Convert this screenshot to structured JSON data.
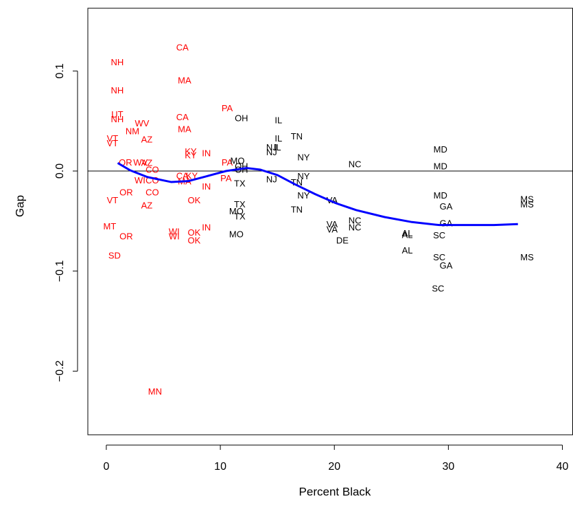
{
  "chart_data": {
    "type": "scatter",
    "x_label": "Percent Black",
    "y_label": "Gap",
    "xlim": [
      -1.62,
      40.9
    ],
    "ylim": [
      -0.2636,
      0.1627
    ],
    "xticks": [
      0,
      10,
      20,
      30,
      40
    ],
    "yticks": [
      {
        "value": -0.2,
        "label": "−0.2"
      },
      {
        "value": -0.1,
        "label": "−0.1"
      },
      {
        "value": 0,
        "label": "0.0"
      },
      0.1
    ],
    "reference_line": 0,
    "series": [
      {
        "color": "#ff0000",
        "labels": [
          "CA",
          "NH",
          "MA",
          "NH",
          "UT",
          "NH",
          "CA",
          "PA",
          "WV",
          "NM",
          "MA",
          "VT",
          "AZ",
          "VT",
          "KY",
          "IN",
          "KY",
          "OR",
          "WV",
          "AZ",
          "PA",
          "CO",
          "CA",
          "KY",
          "WI",
          "CO",
          "MA",
          "PA",
          "IN",
          "CO",
          "OR",
          "VT",
          "OK",
          "AZ",
          "IN",
          "MT",
          "OK",
          "WI",
          "WI",
          "OR",
          "OK",
          "SD",
          "MN"
        ],
        "x": [
          6.67,
          0.96,
          6.86,
          0.96,
          0.96,
          0.96,
          6.67,
          10.6,
          3.13,
          2.29,
          6.86,
          0.54,
          3.55,
          0.54,
          7.4,
          8.78,
          7.4,
          1.68,
          3.0,
          3.55,
          10.6,
          4.03,
          6.67,
          7.5,
          2.95,
          4.03,
          6.86,
          10.5,
          8.78,
          4.03,
          1.74,
          0.54,
          7.7,
          3.55,
          8.78,
          0.3,
          7.7,
          5.95,
          5.95,
          1.74,
          7.7,
          0.72,
          4.27
        ],
        "y": [
          0.123,
          0.108,
          0.09,
          0.08,
          0.056,
          0.051,
          0.053,
          0.062,
          0.047,
          0.039,
          0.041,
          0.032,
          0.031,
          0.027,
          0.019,
          0.017,
          0.015,
          0.008,
          0.008,
          0.0075,
          0.008,
          0.0007,
          -0.0055,
          -0.0055,
          -0.01,
          -0.01,
          -0.011,
          -0.008,
          -0.016,
          -0.022,
          -0.022,
          -0.03,
          -0.03,
          -0.035,
          -0.057,
          -0.056,
          -0.062,
          -0.061,
          -0.066,
          -0.066,
          -0.07,
          -0.085,
          -0.221
        ]
      },
      {
        "color": "#000000",
        "labels": [
          "OH",
          "IL",
          "TN",
          "IL",
          "NJ",
          "IL",
          "NJ",
          "NY",
          "MD",
          "MO",
          "NC",
          "MD",
          "OH",
          "OH",
          "NY",
          "NJ",
          "TX",
          "TN",
          "NY",
          "MD",
          "VA",
          "MS",
          "MS",
          "GA",
          "TX",
          "TN",
          "MO",
          "TX",
          "NC",
          "GA",
          "VA",
          "NC",
          "VA",
          "MO",
          "AL",
          "AL",
          "SC",
          "DE",
          "AL",
          "SC",
          "MS",
          "GA",
          "SC"
        ],
        "x": [
          11.85,
          15.1,
          16.7,
          15.1,
          14.5,
          15.0,
          14.5,
          17.3,
          29.3,
          11.5,
          21.8,
          29.3,
          11.85,
          11.85,
          17.3,
          14.5,
          11.7,
          16.7,
          17.3,
          29.3,
          19.8,
          36.9,
          36.9,
          29.8,
          11.7,
          16.7,
          11.4,
          11.7,
          21.8,
          29.8,
          19.8,
          21.8,
          19.8,
          11.4,
          26.4,
          26.4,
          29.2,
          20.7,
          26.4,
          29.2,
          36.9,
          29.8,
          29.1
        ],
        "y": [
          0.052,
          0.05,
          0.034,
          0.032,
          0.023,
          0.023,
          0.018,
          0.013,
          0.021,
          0.0096,
          0.006,
          0.004,
          0.004,
          0.0007,
          -0.006,
          -0.009,
          -0.013,
          -0.012,
          -0.025,
          -0.025,
          -0.03,
          -0.029,
          -0.034,
          -0.036,
          -0.034,
          -0.039,
          -0.041,
          -0.046,
          -0.05,
          -0.053,
          -0.054,
          -0.057,
          -0.059,
          -0.064,
          -0.063,
          -0.0645,
          -0.065,
          -0.07,
          -0.08,
          -0.087,
          -0.087,
          -0.095,
          -0.118
        ]
      }
    ],
    "curve": {
      "color": "#0000ff",
      "x": [
        1.0,
        2.1,
        3.6,
        5.7,
        7.2,
        8.7,
        10.5,
        12.3,
        13.5,
        15.0,
        16.5,
        18.3,
        20.1,
        21.9,
        24.4,
        26.8,
        29.2,
        31.6,
        34.0,
        36.1
      ],
      "y": [
        0.008,
        0.0007,
        -0.006,
        -0.011,
        -0.01,
        -0.0055,
        0,
        0.003,
        0.0014,
        -0.004,
        -0.013,
        -0.023,
        -0.032,
        -0.039,
        -0.046,
        -0.051,
        -0.054,
        -0.054,
        -0.054,
        -0.053
      ]
    }
  }
}
